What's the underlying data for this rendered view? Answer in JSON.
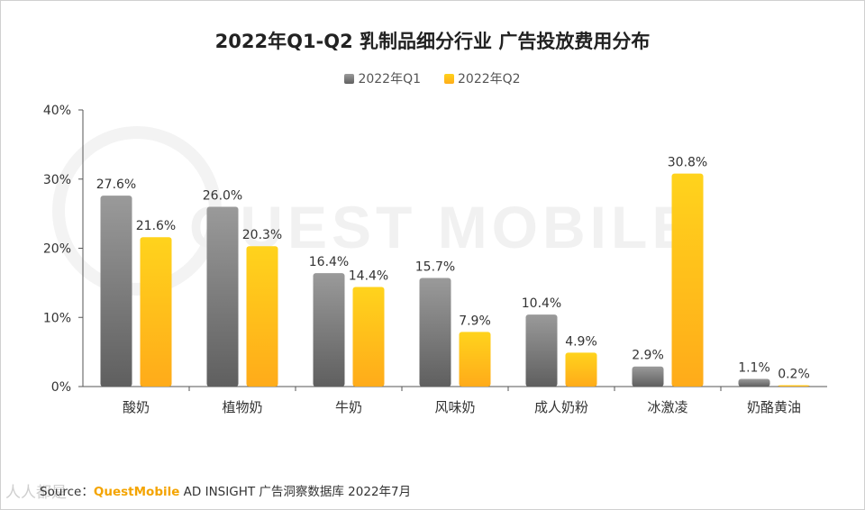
{
  "title": "2022年Q1-Q2 乳制品细分行业 广告投放费用分布",
  "legend": {
    "q1": "2022年Q1",
    "q2": "2022年Q2"
  },
  "colors": {
    "q1_top": "#9a9a9a",
    "q1_bottom": "#5f5f5f",
    "q2_top": "#ffd31c",
    "q2_bottom": "#ffab1a"
  },
  "source": {
    "prefix": "Source：",
    "brand": "QuestMobile",
    "rest": " AD INSIGHT 广告洞察数据库 2022年7月"
  },
  "watermark": {
    "text": "QUEST MOBILE",
    "bottom": "人人都是"
  },
  "chart_data": {
    "type": "bar",
    "title": "2022年Q1-Q2 乳制品细分行业 广告投放费用分布",
    "categories": [
      "酸奶",
      "植物奶",
      "牛奶",
      "风味奶",
      "成人奶粉",
      "冰激凌",
      "奶酪黄油"
    ],
    "series": [
      {
        "name": "2022年Q1",
        "values": [
          27.6,
          26.0,
          16.4,
          15.7,
          10.4,
          2.9,
          1.1
        ],
        "labels": [
          "27.6%",
          "26.0%",
          "16.4%",
          "15.7%",
          "10.4%",
          "2.9%",
          "1.1%"
        ]
      },
      {
        "name": "2022年Q2",
        "values": [
          21.6,
          20.3,
          14.4,
          7.9,
          4.9,
          30.8,
          0.2
        ],
        "labels": [
          "21.6%",
          "20.3%",
          "14.4%",
          "7.9%",
          "4.9%",
          "30.8%",
          "0.2%"
        ]
      }
    ],
    "yticks": [
      "0%",
      "10%",
      "20%",
      "30%",
      "40%"
    ],
    "ylim": [
      0,
      40
    ],
    "legend_position": "top-center",
    "grid": false
  }
}
